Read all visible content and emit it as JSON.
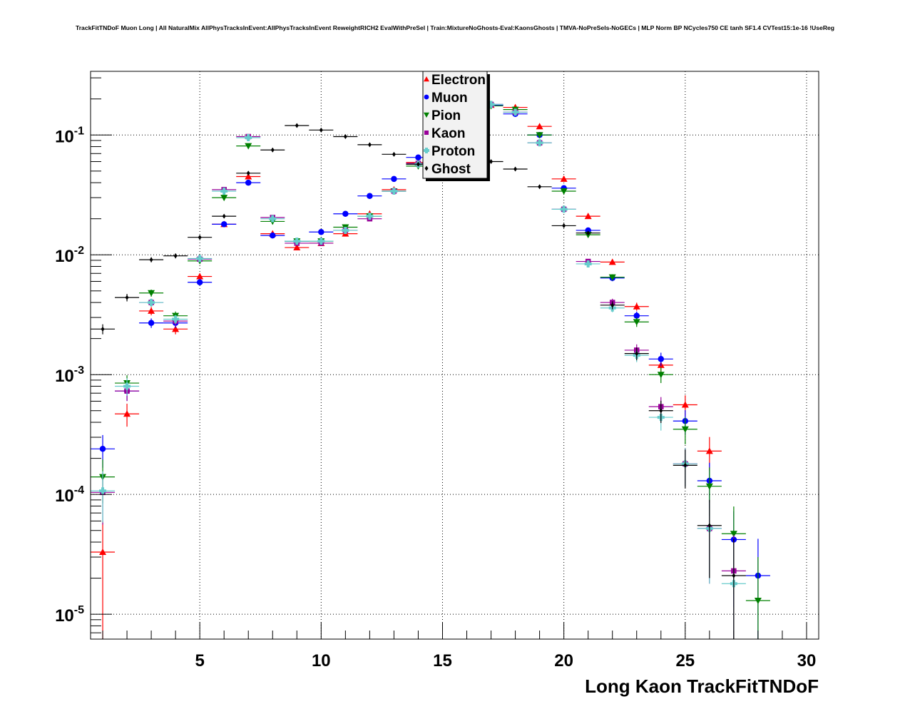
{
  "chart_data": {
    "type": "scatter",
    "title": "TrackFitTNDoF Muon Long | All NaturalMix AllPhysTracksInEvent:AllPhysTracksInEvent ReweightRICH2 EvalWithPreSel | Train:MixtureNoGhosts-Eval:KaonsGhosts | TMVA-NoPreSels-NoGECs | MLP Norm BP NCycles750 CE tanh SF1.4 CVTest15:1e-16 !UseReg",
    "xlabel": "Long Kaon TrackFitTNDoF",
    "ylabel": "",
    "xlim": [
      0.5,
      30.5
    ],
    "ylim": [
      6.2e-06,
      0.34
    ],
    "yscale": "log",
    "grid": true,
    "legend_position": "top-center",
    "x_ticks": [
      "5",
      "10",
      "15",
      "20",
      "25",
      "30"
    ],
    "y_ticks": [
      {
        "base": "10",
        "exp": "-1"
      },
      {
        "base": "10",
        "exp": "-2"
      },
      {
        "base": "10",
        "exp": "-3"
      },
      {
        "base": "10",
        "exp": "-4"
      },
      {
        "base": "10",
        "exp": "-5"
      }
    ],
    "x": [
      1,
      2,
      3,
      4,
      5,
      6,
      7,
      8,
      9,
      10,
      11,
      12,
      13,
      14,
      15,
      16,
      17,
      18,
      19,
      20,
      21,
      22,
      23,
      24,
      25,
      26,
      27,
      28
    ],
    "bin_width": 1,
    "series": [
      {
        "name": "Electron",
        "color": "#ff0000",
        "marker": "triangle-up",
        "values": [
          3.3e-05,
          0.00047,
          0.0034,
          0.0024,
          0.0066,
          0.018,
          0.045,
          0.015,
          0.0115,
          0.0125,
          0.015,
          0.022,
          0.035,
          0.059,
          0.1,
          0.15,
          0.178,
          0.17,
          0.118,
          0.043,
          0.021,
          0.0087,
          0.0037,
          0.0012,
          0.00056,
          0.00023,
          null,
          null
        ]
      },
      {
        "name": "Muon",
        "color": "#0000ff",
        "marker": "circle",
        "values": [
          0.00024,
          0.00073,
          0.0027,
          0.0027,
          0.0059,
          0.018,
          0.04,
          0.0145,
          0.013,
          0.0155,
          0.022,
          0.031,
          0.043,
          0.065,
          0.1,
          0.14,
          0.178,
          0.15,
          0.1,
          0.036,
          0.016,
          0.0064,
          0.0031,
          0.00135,
          0.00041,
          0.00013,
          4.2e-05,
          2.1e-05
        ]
      },
      {
        "name": "Pion",
        "color": "#008000",
        "marker": "triangle-down",
        "values": [
          0.00014,
          0.00085,
          0.0048,
          0.0031,
          0.0089,
          0.03,
          0.081,
          0.019,
          0.013,
          0.013,
          0.017,
          0.021,
          0.034,
          0.055,
          0.1,
          0.14,
          0.175,
          0.163,
          0.1,
          0.034,
          0.0147,
          0.0065,
          0.00275,
          0.001,
          0.00035,
          0.000117,
          4.7e-05,
          1.3e-05
        ]
      },
      {
        "name": "Kaon",
        "color": "#990099",
        "marker": "square",
        "values": [
          0.000104,
          0.00073,
          0.004,
          0.0028,
          0.0092,
          0.035,
          0.097,
          0.0205,
          0.0125,
          0.0125,
          0.016,
          0.02,
          0.034,
          0.058,
          0.1,
          0.14,
          0.18,
          0.155,
          0.086,
          0.024,
          0.0088,
          0.004,
          0.0016,
          0.00054,
          0.00018,
          5.2e-05,
          2.3e-05,
          null
        ]
      },
      {
        "name": "Proton",
        "color": "#66cccc",
        "marker": "cross",
        "values": [
          0.000107,
          0.0008,
          0.004,
          0.0029,
          0.0093,
          0.034,
          0.095,
          0.02,
          0.013,
          0.013,
          0.016,
          0.021,
          0.034,
          0.057,
          0.1,
          0.14,
          0.18,
          0.155,
          0.086,
          0.024,
          0.0084,
          0.0036,
          0.00145,
          0.00044,
          0.00018,
          5.2e-05,
          1.8e-05,
          null
        ]
      },
      {
        "name": "Ghost",
        "color": "#000000",
        "marker": "diamond",
        "values": [
          0.0024,
          0.0044,
          0.0091,
          0.0098,
          0.014,
          0.021,
          0.048,
          0.075,
          0.12,
          0.11,
          0.097,
          0.083,
          0.069,
          0.057,
          0.062,
          0.061,
          0.06,
          0.052,
          0.037,
          0.0175,
          0.0152,
          0.0038,
          0.0015,
          0.0005,
          0.000175,
          5.5e-05,
          2.1e-05,
          null
        ]
      }
    ]
  }
}
